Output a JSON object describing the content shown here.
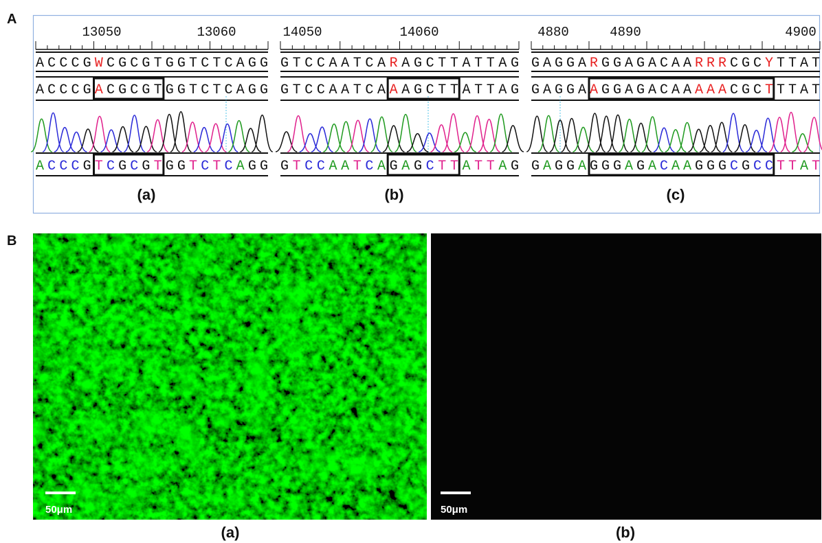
{
  "panel_A": {
    "label": "A",
    "base_colors": {
      "A": "#1f9a1f",
      "C": "#2a2ad8",
      "G": "#111111",
      "T": "#e0208c"
    },
    "panels": [
      {
        "ruler": [
          "13050",
          "13060"
        ],
        "reference": [
          {
            "text": "ACCCG",
            "color": "#111111"
          },
          {
            "text": "W",
            "color": "#e82020"
          },
          {
            "text": "CGCGTGGTCTCAGG",
            "color": "#111111"
          }
        ],
        "edited": [
          {
            "text": "ACCCG",
            "color": "#111111"
          },
          {
            "text": "A",
            "color": "#e82020"
          },
          {
            "text": "CGCGTGGTCTCAGG",
            "color": "#111111"
          }
        ],
        "trace": "ACCCGTCGCGTGGTCTCAGG",
        "caption": "(a)"
      },
      {
        "ruler": [
          "14050",
          "14060"
        ],
        "reference": [
          {
            "text": "GTCCAATCA",
            "color": "#111111"
          },
          {
            "text": "R",
            "color": "#e82020"
          },
          {
            "text": "AGCTTATTAG",
            "color": "#111111"
          }
        ],
        "edited": [
          {
            "text": "GTCCAATCA",
            "color": "#111111"
          },
          {
            "text": "A",
            "color": "#e82020"
          },
          {
            "text": "AGCTTATTAG",
            "color": "#111111"
          }
        ],
        "trace": "GTCCAATCAGAGCTTATTAG",
        "caption": "(b)"
      },
      {
        "ruler": [
          "4880",
          "4890",
          "4900"
        ],
        "reference": [
          {
            "text": "GAGGA",
            "color": "#111111"
          },
          {
            "text": "R",
            "color": "#e82020"
          },
          {
            "text": "GGAGACAA",
            "color": "#111111"
          },
          {
            "text": "RRR",
            "color": "#e82020"
          },
          {
            "text": "CGC",
            "color": "#111111"
          },
          {
            "text": "Y",
            "color": "#e82020"
          },
          {
            "text": "TTAT",
            "color": "#111111"
          }
        ],
        "edited": [
          {
            "text": "GAGGA",
            "color": "#111111"
          },
          {
            "text": "A",
            "color": "#e82020"
          },
          {
            "text": "GGAGACAA",
            "color": "#111111"
          },
          {
            "text": "AAA",
            "color": "#e82020"
          },
          {
            "text": "CGC",
            "color": "#111111"
          },
          {
            "text": "T",
            "color": "#e82020"
          },
          {
            "text": "TTAT",
            "color": "#111111"
          }
        ],
        "trace": "GAGGAGGGAGACAAGGGCGCCTTAT",
        "caption": "(c)"
      }
    ]
  },
  "panel_B": {
    "label": "B",
    "images": [
      {
        "scale_label": "50μm",
        "caption": "(a)"
      },
      {
        "scale_label": "50μm",
        "caption": "(b)"
      }
    ]
  }
}
